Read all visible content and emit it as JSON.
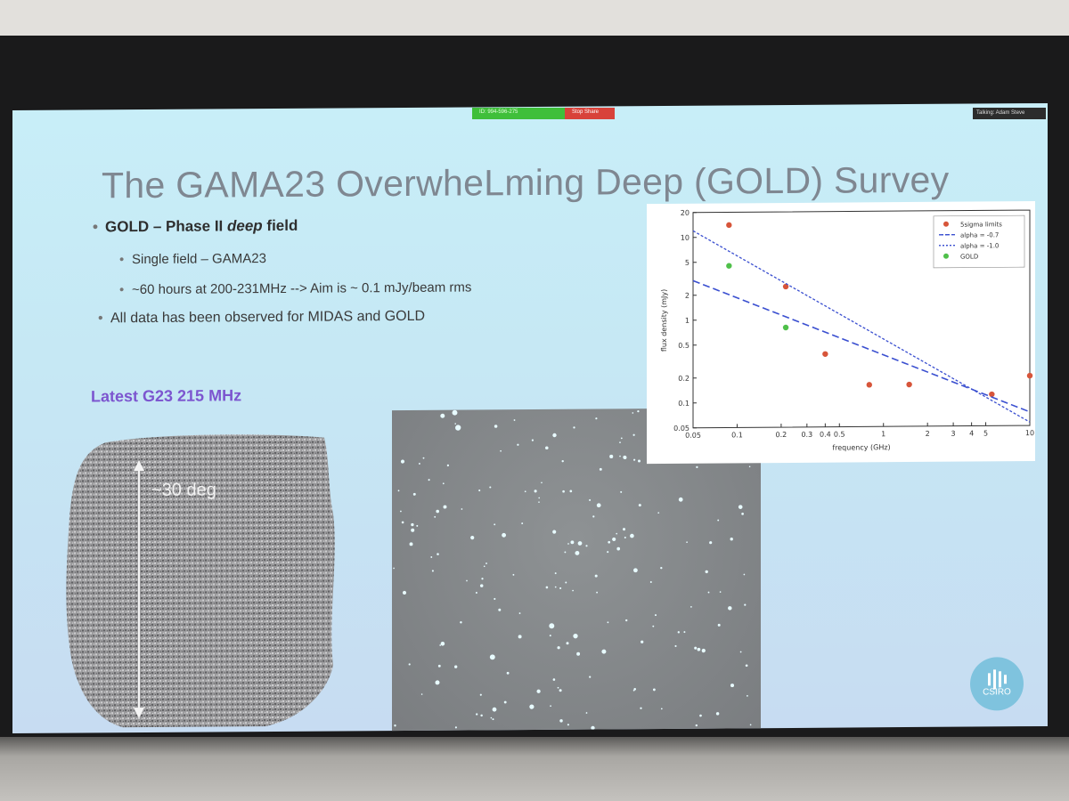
{
  "meeting": {
    "share_id_label": "ID: 994-596-275",
    "stop_share_label": "Stop Share",
    "talking_label": "Talking: Adam Steve"
  },
  "slide": {
    "title": "The GAMA23 OverwheLming Deep (GOLD) Survey",
    "bullet1_prefix": "GOLD – Phase II ",
    "bullet1_italic": "deep",
    "bullet1_suffix": " field",
    "sub1": "Single field – GAMA23",
    "sub2": "~60 hours at 200-231MHz --> Aim is ~ 0.1 mJy/beam rms",
    "bullet2": "All data has been observed for MIDAS and GOLD",
    "latest_label": "Latest G23 215 MHz",
    "size_label": "~30 deg",
    "logo_text": "CSIRO",
    "accent_color": "#7c55cf"
  },
  "chart_data": {
    "type": "scatter",
    "xlabel": "frequency (GHz)",
    "ylabel": "flux density (mJy)",
    "xscale": "log",
    "yscale": "log",
    "xlim": [
      0.05,
      10
    ],
    "ylim": [
      0.05,
      20
    ],
    "x_tick_labels": [
      "0.05",
      "0.1",
      "0.2",
      "0.3",
      "0.4",
      "0.5",
      "1",
      "2",
      "3",
      "4",
      "5",
      "10"
    ],
    "y_tick_labels": [
      "0.05",
      "0.1",
      "0.2",
      "0.5",
      "1",
      "2",
      "5",
      "10",
      "20"
    ],
    "x_ticks": [
      0.05,
      0.1,
      0.2,
      0.3,
      0.4,
      0.5,
      1,
      2,
      3,
      4,
      5,
      10
    ],
    "y_ticks": [
      0.05,
      0.1,
      0.2,
      0.5,
      1,
      2,
      5,
      10,
      20
    ],
    "legend_position": "top-right",
    "series": [
      {
        "name": "5sigma limits",
        "style": "points",
        "color": "#d7553a",
        "x": [
          0.088,
          0.215,
          0.4,
          0.8,
          1.5,
          5.5,
          10
        ],
        "y": [
          14,
          2.5,
          0.38,
          0.16,
          0.16,
          0.12,
          0.2
        ]
      },
      {
        "name": "alpha = -0.7",
        "style": "dashed",
        "color": "#3a4fd0",
        "x": [
          0.05,
          10
        ],
        "y": [
          3.0,
          0.073
        ]
      },
      {
        "name": "alpha = -1.0",
        "style": "dotted",
        "color": "#3a4fd0",
        "x": [
          0.05,
          10
        ],
        "y": [
          12,
          0.055
        ]
      },
      {
        "name": "GOLD",
        "style": "points",
        "color": "#4fc04a",
        "x": [
          0.088,
          0.215
        ],
        "y": [
          4.5,
          0.8
        ]
      }
    ]
  }
}
